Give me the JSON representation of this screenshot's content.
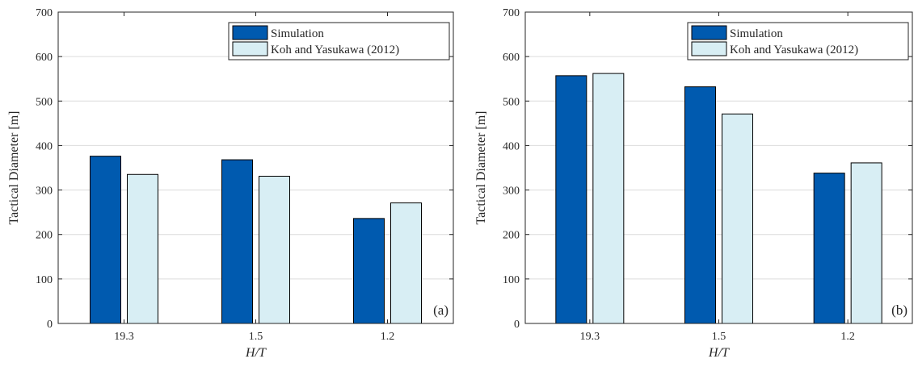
{
  "colors": {
    "simulation": "#005aaf",
    "koh_yasukawa": "#d8eef4",
    "bar_edge": "#000000",
    "grid": "#dcdcdc",
    "axis": "#262626"
  },
  "chart_data": [
    {
      "type": "bar",
      "panel_label": "(a)",
      "xlabel": "H/T",
      "ylabel": "Tactical Diameter [m]",
      "ylim": [
        0,
        700
      ],
      "yticks": [
        0,
        100,
        200,
        300,
        400,
        500,
        600,
        700
      ],
      "grid": true,
      "legend_position": "top-right",
      "categories": [
        "19.3",
        "1.5",
        "1.2"
      ],
      "series": [
        {
          "name": "Simulation",
          "values": [
            376,
            368,
            236
          ]
        },
        {
          "name": "Koh and Yasukawa (2012)",
          "values": [
            335,
            331,
            271
          ]
        }
      ]
    },
    {
      "type": "bar",
      "panel_label": "(b)",
      "xlabel": "H/T",
      "ylabel": "Tactical Diameter [m]",
      "ylim": [
        0,
        700
      ],
      "yticks": [
        0,
        100,
        200,
        300,
        400,
        500,
        600,
        700
      ],
      "grid": true,
      "legend_position": "top-right",
      "categories": [
        "19.3",
        "1.5",
        "1.2"
      ],
      "series": [
        {
          "name": "Simulation",
          "values": [
            557,
            532,
            338
          ]
        },
        {
          "name": "Koh and Yasukawa (2012)",
          "values": [
            562,
            471,
            361
          ]
        }
      ]
    }
  ]
}
